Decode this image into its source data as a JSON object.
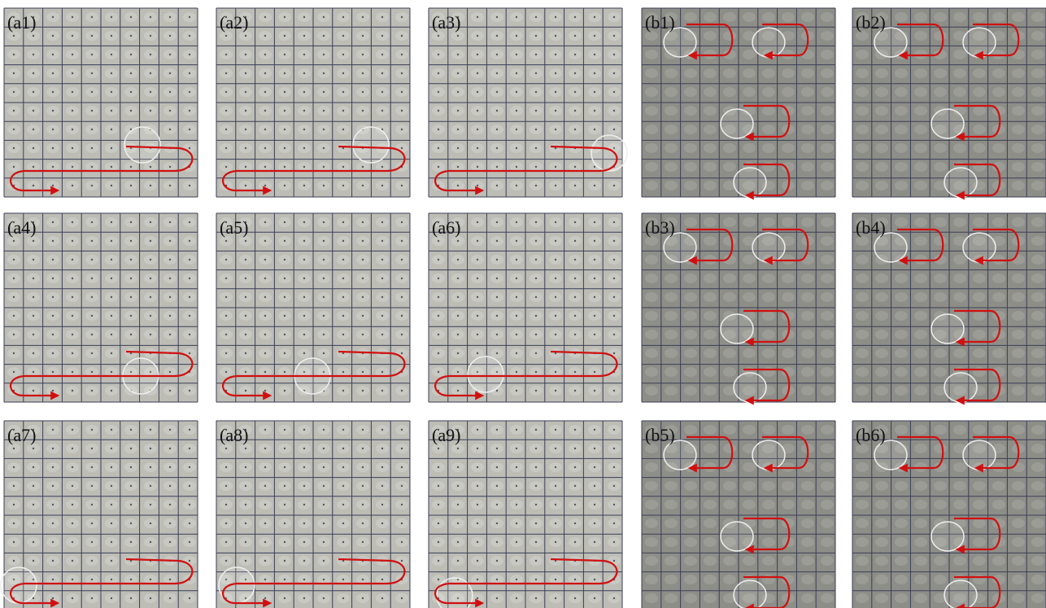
{
  "panels": [
    {
      "label": "(a1)"
    },
    {
      "label": "(a2)"
    },
    {
      "label": "(a3)"
    },
    {
      "label": "(b1)"
    },
    {
      "label": "(b2)"
    },
    {
      "label": "(a4)"
    },
    {
      "label": "(a5)"
    },
    {
      "label": "(a6)"
    },
    {
      "label": "(b3)"
    },
    {
      "label": "(b4)"
    },
    {
      "label": "(a7)"
    },
    {
      "label": "(a8)"
    },
    {
      "label": "(a9)"
    },
    {
      "label": "(b5)"
    },
    {
      "label": "(b6)"
    }
  ]
}
